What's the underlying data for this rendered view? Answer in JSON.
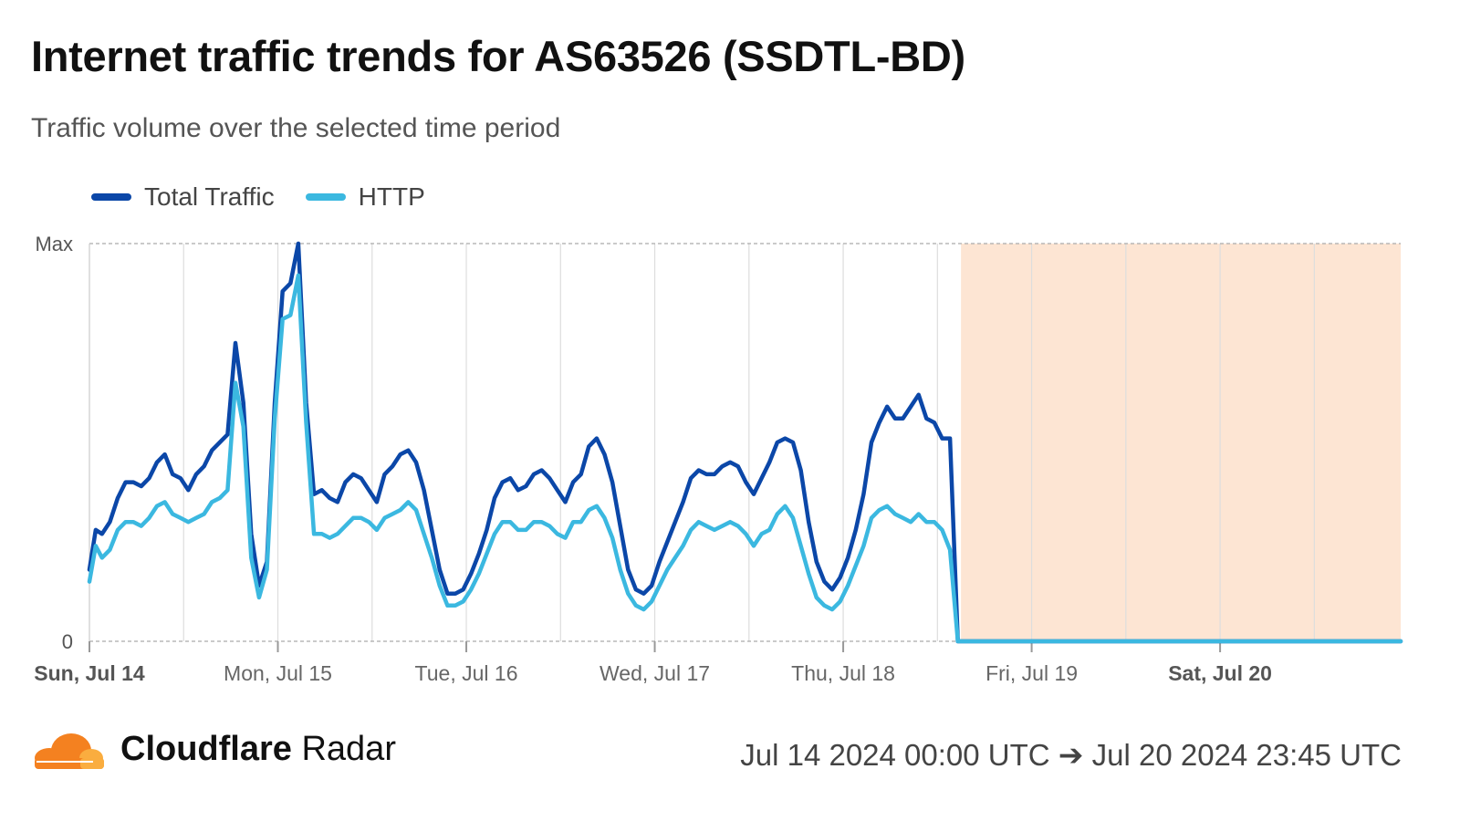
{
  "header": {
    "title": "Internet traffic trends for AS63526 (SSDTL-BD)",
    "subtitle": "Traffic volume over the selected time period"
  },
  "legend": [
    {
      "label": "Total Traffic",
      "color": "#0b47a8"
    },
    {
      "label": "HTTP",
      "color": "#3bb8e0"
    }
  ],
  "footer": {
    "brand_bold": "Cloudflare",
    "brand_rest": "Radar",
    "range": "Jul 14 2024 00:00 UTC ➔ Jul 20 2024 23:45 UTC",
    "logo_icon": "cloudflare-cloud-icon"
  },
  "chart_data": {
    "type": "line",
    "y_labels": [
      "Max",
      "0"
    ],
    "ylim": [
      0,
      1
    ],
    "xlim": [
      0,
      167
    ],
    "x_unit": "hours since Jul 14 2024 00:00 UTC",
    "x_ticks": [
      {
        "label": "Sun, Jul 14",
        "x": 0,
        "bold": true
      },
      {
        "label": "Mon, Jul 15",
        "x": 24,
        "bold": false
      },
      {
        "label": "Tue, Jul 16",
        "x": 48,
        "bold": false
      },
      {
        "label": "Wed, Jul 17",
        "x": 72,
        "bold": false
      },
      {
        "label": "Thu, Jul 18",
        "x": 96,
        "bold": false
      },
      {
        "label": "Fri, Jul 19",
        "x": 120,
        "bold": false
      },
      {
        "label": "Sat, Jul 20",
        "x": 144,
        "bold": true
      }
    ],
    "grid_x": [
      12,
      24,
      36,
      48,
      60,
      72,
      84,
      96,
      108,
      120,
      132,
      144,
      156
    ],
    "shaded_region": {
      "from": 111,
      "to": 167,
      "color": "#fde5d3"
    },
    "series": [
      {
        "name": "Total Traffic",
        "color": "#0b47a8",
        "points": [
          [
            0,
            0.18
          ],
          [
            0.8,
            0.28
          ],
          [
            1.6,
            0.27
          ],
          [
            2.6,
            0.3
          ],
          [
            3.6,
            0.36
          ],
          [
            4.6,
            0.4
          ],
          [
            5.6,
            0.4
          ],
          [
            6.6,
            0.39
          ],
          [
            7.6,
            0.41
          ],
          [
            8.6,
            0.45
          ],
          [
            9.6,
            0.47
          ],
          [
            10.6,
            0.42
          ],
          [
            11.6,
            0.41
          ],
          [
            12.6,
            0.38
          ],
          [
            13.6,
            0.42
          ],
          [
            14.6,
            0.44
          ],
          [
            15.6,
            0.48
          ],
          [
            16.6,
            0.5
          ],
          [
            17.6,
            0.52
          ],
          [
            18.6,
            0.75
          ],
          [
            19.6,
            0.6
          ],
          [
            20.6,
            0.27
          ],
          [
            21.6,
            0.14
          ],
          [
            22.6,
            0.2
          ],
          [
            23.6,
            0.6
          ],
          [
            24.6,
            0.88
          ],
          [
            25.6,
            0.9
          ],
          [
            26.6,
            1.0
          ],
          [
            27.6,
            0.6
          ],
          [
            28.6,
            0.37
          ],
          [
            29.6,
            0.38
          ],
          [
            30.6,
            0.36
          ],
          [
            31.6,
            0.35
          ],
          [
            32.6,
            0.4
          ],
          [
            33.6,
            0.42
          ],
          [
            34.6,
            0.41
          ],
          [
            35.6,
            0.38
          ],
          [
            36.6,
            0.35
          ],
          [
            37.6,
            0.42
          ],
          [
            38.6,
            0.44
          ],
          [
            39.6,
            0.47
          ],
          [
            40.6,
            0.48
          ],
          [
            41.6,
            0.45
          ],
          [
            42.6,
            0.38
          ],
          [
            43.6,
            0.28
          ],
          [
            44.6,
            0.18
          ],
          [
            45.6,
            0.12
          ],
          [
            46.6,
            0.12
          ],
          [
            47.6,
            0.13
          ],
          [
            48.6,
            0.17
          ],
          [
            49.6,
            0.22
          ],
          [
            50.6,
            0.28
          ],
          [
            51.6,
            0.36
          ],
          [
            52.6,
            0.4
          ],
          [
            53.6,
            0.41
          ],
          [
            54.6,
            0.38
          ],
          [
            55.6,
            0.39
          ],
          [
            56.6,
            0.42
          ],
          [
            57.6,
            0.43
          ],
          [
            58.6,
            0.41
          ],
          [
            59.6,
            0.38
          ],
          [
            60.6,
            0.35
          ],
          [
            61.6,
            0.4
          ],
          [
            62.6,
            0.42
          ],
          [
            63.6,
            0.49
          ],
          [
            64.6,
            0.51
          ],
          [
            65.6,
            0.47
          ],
          [
            66.6,
            0.4
          ],
          [
            67.6,
            0.29
          ],
          [
            68.6,
            0.18
          ],
          [
            69.6,
            0.13
          ],
          [
            70.6,
            0.12
          ],
          [
            71.6,
            0.14
          ],
          [
            72.6,
            0.2
          ],
          [
            73.6,
            0.25
          ],
          [
            74.6,
            0.3
          ],
          [
            75.6,
            0.35
          ],
          [
            76.6,
            0.41
          ],
          [
            77.6,
            0.43
          ],
          [
            78.6,
            0.42
          ],
          [
            79.6,
            0.42
          ],
          [
            80.6,
            0.44
          ],
          [
            81.6,
            0.45
          ],
          [
            82.6,
            0.44
          ],
          [
            83.6,
            0.4
          ],
          [
            84.6,
            0.37
          ],
          [
            85.6,
            0.41
          ],
          [
            86.6,
            0.45
          ],
          [
            87.6,
            0.5
          ],
          [
            88.6,
            0.51
          ],
          [
            89.6,
            0.5
          ],
          [
            90.6,
            0.43
          ],
          [
            91.6,
            0.3
          ],
          [
            92.6,
            0.2
          ],
          [
            93.6,
            0.15
          ],
          [
            94.6,
            0.13
          ],
          [
            95.6,
            0.16
          ],
          [
            96.6,
            0.21
          ],
          [
            97.6,
            0.28
          ],
          [
            98.6,
            0.37
          ],
          [
            99.6,
            0.5
          ],
          [
            100.6,
            0.55
          ],
          [
            101.6,
            0.59
          ],
          [
            102.6,
            0.56
          ],
          [
            103.6,
            0.56
          ],
          [
            104.6,
            0.59
          ],
          [
            105.6,
            0.62
          ],
          [
            106.6,
            0.56
          ],
          [
            107.6,
            0.55
          ],
          [
            108.6,
            0.51
          ],
          [
            109.6,
            0.51
          ],
          [
            110.6,
            0.0
          ],
          [
            111.6,
            0.0
          ],
          [
            167,
            0.0
          ]
        ]
      },
      {
        "name": "HTTP",
        "color": "#3bb8e0",
        "points": [
          [
            0,
            0.15
          ],
          [
            0.8,
            0.24
          ],
          [
            1.6,
            0.21
          ],
          [
            2.6,
            0.23
          ],
          [
            3.6,
            0.28
          ],
          [
            4.6,
            0.3
          ],
          [
            5.6,
            0.3
          ],
          [
            6.6,
            0.29
          ],
          [
            7.6,
            0.31
          ],
          [
            8.6,
            0.34
          ],
          [
            9.6,
            0.35
          ],
          [
            10.6,
            0.32
          ],
          [
            11.6,
            0.31
          ],
          [
            12.6,
            0.3
          ],
          [
            13.6,
            0.31
          ],
          [
            14.6,
            0.32
          ],
          [
            15.6,
            0.35
          ],
          [
            16.6,
            0.36
          ],
          [
            17.6,
            0.38
          ],
          [
            18.6,
            0.65
          ],
          [
            19.6,
            0.54
          ],
          [
            20.6,
            0.21
          ],
          [
            21.6,
            0.11
          ],
          [
            22.6,
            0.18
          ],
          [
            23.6,
            0.56
          ],
          [
            24.6,
            0.81
          ],
          [
            25.6,
            0.82
          ],
          [
            26.6,
            0.92
          ],
          [
            27.6,
            0.55
          ],
          [
            28.6,
            0.27
          ],
          [
            29.6,
            0.27
          ],
          [
            30.6,
            0.26
          ],
          [
            31.6,
            0.27
          ],
          [
            32.6,
            0.29
          ],
          [
            33.6,
            0.31
          ],
          [
            34.6,
            0.31
          ],
          [
            35.6,
            0.3
          ],
          [
            36.6,
            0.28
          ],
          [
            37.6,
            0.31
          ],
          [
            38.6,
            0.32
          ],
          [
            39.6,
            0.33
          ],
          [
            40.6,
            0.35
          ],
          [
            41.6,
            0.33
          ],
          [
            42.6,
            0.27
          ],
          [
            43.6,
            0.21
          ],
          [
            44.6,
            0.14
          ],
          [
            45.6,
            0.09
          ],
          [
            46.6,
            0.09
          ],
          [
            47.6,
            0.1
          ],
          [
            48.6,
            0.13
          ],
          [
            49.6,
            0.17
          ],
          [
            50.6,
            0.22
          ],
          [
            51.6,
            0.27
          ],
          [
            52.6,
            0.3
          ],
          [
            53.6,
            0.3
          ],
          [
            54.6,
            0.28
          ],
          [
            55.6,
            0.28
          ],
          [
            56.6,
            0.3
          ],
          [
            57.6,
            0.3
          ],
          [
            58.6,
            0.29
          ],
          [
            59.6,
            0.27
          ],
          [
            60.6,
            0.26
          ],
          [
            61.6,
            0.3
          ],
          [
            62.6,
            0.3
          ],
          [
            63.6,
            0.33
          ],
          [
            64.6,
            0.34
          ],
          [
            65.6,
            0.31
          ],
          [
            66.6,
            0.26
          ],
          [
            67.6,
            0.18
          ],
          [
            68.6,
            0.12
          ],
          [
            69.6,
            0.09
          ],
          [
            70.6,
            0.08
          ],
          [
            71.6,
            0.1
          ],
          [
            72.6,
            0.14
          ],
          [
            73.6,
            0.18
          ],
          [
            74.6,
            0.21
          ],
          [
            75.6,
            0.24
          ],
          [
            76.6,
            0.28
          ],
          [
            77.6,
            0.3
          ],
          [
            78.6,
            0.29
          ],
          [
            79.6,
            0.28
          ],
          [
            80.6,
            0.29
          ],
          [
            81.6,
            0.3
          ],
          [
            82.6,
            0.29
          ],
          [
            83.6,
            0.27
          ],
          [
            84.6,
            0.24
          ],
          [
            85.6,
            0.27
          ],
          [
            86.6,
            0.28
          ],
          [
            87.6,
            0.32
          ],
          [
            88.6,
            0.34
          ],
          [
            89.6,
            0.31
          ],
          [
            90.6,
            0.24
          ],
          [
            91.6,
            0.17
          ],
          [
            92.6,
            0.11
          ],
          [
            93.6,
            0.09
          ],
          [
            94.6,
            0.08
          ],
          [
            95.6,
            0.1
          ],
          [
            96.6,
            0.14
          ],
          [
            97.6,
            0.19
          ],
          [
            98.6,
            0.24
          ],
          [
            99.6,
            0.31
          ],
          [
            100.6,
            0.33
          ],
          [
            101.6,
            0.34
          ],
          [
            102.6,
            0.32
          ],
          [
            103.6,
            0.31
          ],
          [
            104.6,
            0.3
          ],
          [
            105.6,
            0.32
          ],
          [
            106.6,
            0.3
          ],
          [
            107.6,
            0.3
          ],
          [
            108.6,
            0.28
          ],
          [
            109.6,
            0.23
          ],
          [
            110.6,
            0.0
          ],
          [
            111.6,
            0.0
          ],
          [
            167,
            0.0
          ]
        ]
      }
    ]
  }
}
